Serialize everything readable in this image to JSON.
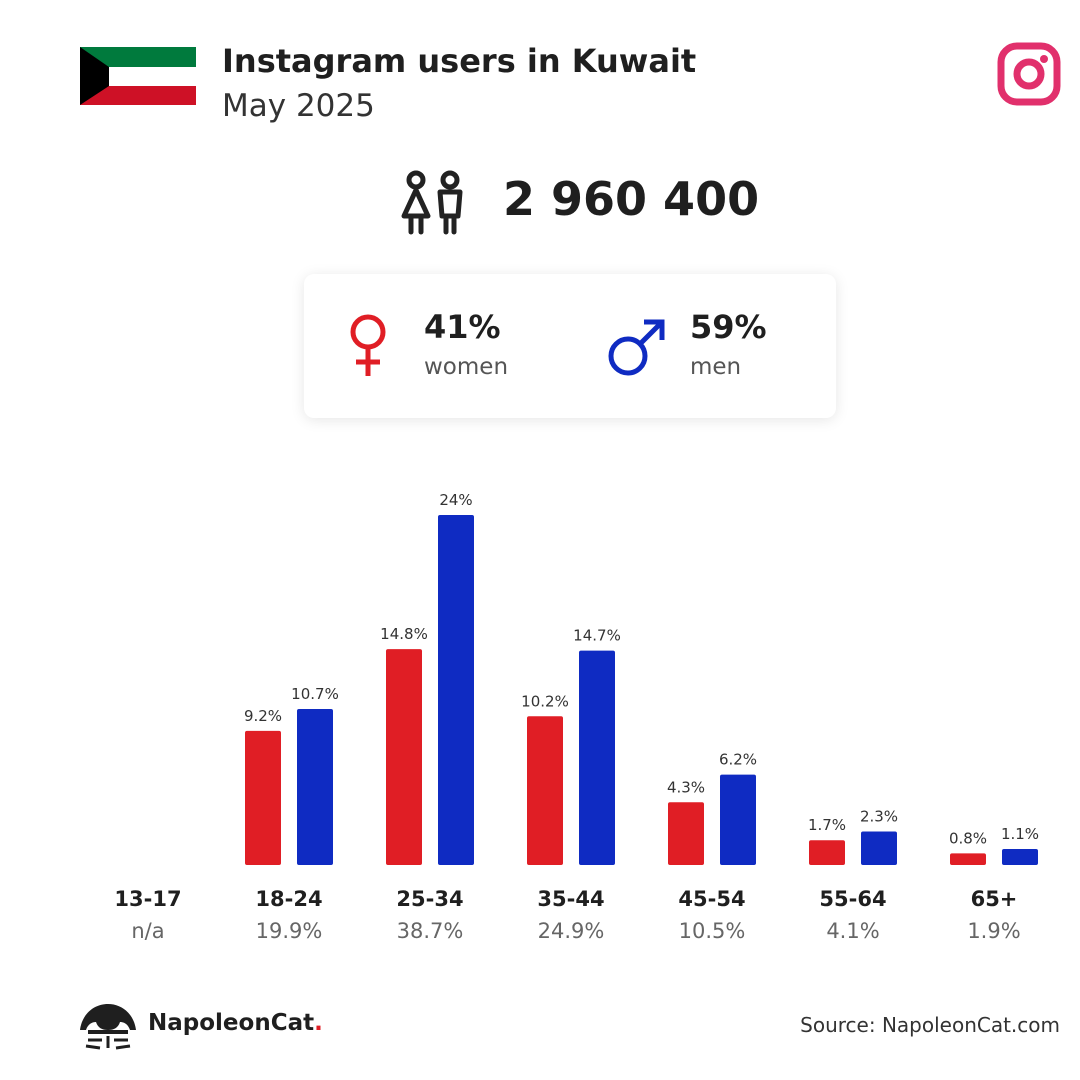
{
  "header": {
    "title": "Instagram users in Kuwait",
    "subtitle": "May 2025",
    "flag_colors": [
      "#007a3d",
      "#ffffff",
      "#ce1126",
      "#000000"
    ],
    "platform_icon": "instagram-icon",
    "platform_color": "#e1306c"
  },
  "total": {
    "icon": "people-icon",
    "value": "2 960 400"
  },
  "gender": {
    "women": {
      "icon": "female-icon",
      "pct": "41%",
      "label": "women",
      "color": "#e01e25"
    },
    "men": {
      "icon": "male-icon",
      "pct": "59%",
      "label": "men",
      "color": "#0f2bc2"
    }
  },
  "chart_data": {
    "type": "bar",
    "categories": [
      "13-17",
      "18-24",
      "25-34",
      "35-44",
      "45-54",
      "55-64",
      "65+"
    ],
    "category_totals": [
      "n/a",
      "19.9%",
      "38.7%",
      "24.9%",
      "10.5%",
      "4.1%",
      "1.9%"
    ],
    "series": [
      {
        "color": "#e01e25",
        "values": [
          null,
          9.2,
          14.8,
          10.2,
          4.3,
          1.7,
          0.8
        ],
        "labels": [
          "",
          "9.2%",
          "14.8%",
          "10.2%",
          "4.3%",
          "1.7%",
          "0.8%"
        ]
      },
      {
        "color": "#0f2bc2",
        "values": [
          null,
          10.7,
          24,
          14.7,
          6.2,
          2.3,
          1.1
        ],
        "labels": [
          "",
          "10.7%",
          "24%",
          "14.7%",
          "6.2%",
          "2.3%",
          "1.1%"
        ]
      }
    ],
    "ylim": [
      0,
      24
    ],
    "grid": false,
    "title": "",
    "xlabel": "",
    "ylabel": ""
  },
  "footer": {
    "brand": "NapoleonCat",
    "brand_dot": ".",
    "logo_icon": "napoleoncat-logo-icon",
    "source": "Source: NapoleonCat.com"
  }
}
